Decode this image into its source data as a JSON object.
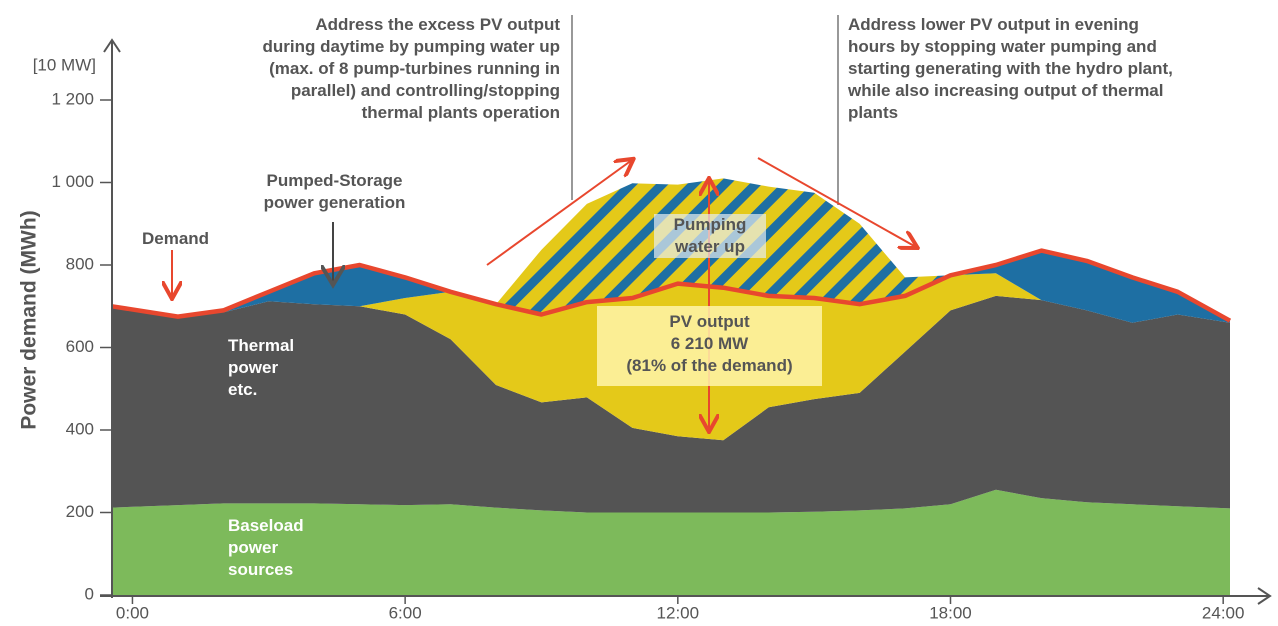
{
  "chart_data": {
    "type": "stacked_area",
    "ylabel": "Power demand (MWh)",
    "y_unit": "[10 MW]",
    "x": [
      -0.45,
      1,
      2,
      3,
      4,
      5,
      6,
      7,
      8,
      9,
      10,
      11,
      12,
      13,
      14,
      15,
      16,
      17,
      18,
      19,
      20,
      21,
      22,
      23,
      24.15
    ],
    "xlim": [
      -0.45,
      24.15
    ],
    "xticks": [
      {
        "value": 0,
        "label": "0:00"
      },
      {
        "value": 6,
        "label": "6:00"
      },
      {
        "value": 12,
        "label": "12:00"
      },
      {
        "value": 18,
        "label": "18:00"
      },
      {
        "value": 24,
        "label": "24:00"
      }
    ],
    "ylim": [
      0,
      1200
    ],
    "yticks": [
      0,
      200,
      400,
      600,
      800,
      {
        "value": 1000,
        "label": "1 000"
      },
      {
        "value": 1200,
        "label": "1 200"
      }
    ],
    "series": [
      {
        "name": "Baseload power sources",
        "color": "#7dba5b",
        "values": [
          212,
          218,
          222,
          222,
          222,
          220,
          218,
          220,
          212,
          205,
          200,
          200,
          200,
          200,
          200,
          202,
          205,
          210,
          220,
          255,
          235,
          225,
          220,
          215,
          210
        ]
      },
      {
        "name": "Thermal power etc.",
        "color": "#545454",
        "values": [
          483,
          460,
          463,
          490,
          483,
          480,
          462,
          400,
          297,
          262,
          279,
          205,
          185,
          175,
          255,
          273,
          285,
          380,
          470,
          470,
          480,
          465,
          440,
          465,
          450
        ]
      },
      {
        "name": "PV output",
        "color": "#e4c919",
        "values": [
          0,
          0,
          0,
          0,
          0,
          0,
          40,
          115,
          196,
          213,
          231,
          315,
          370,
          370,
          270,
          245,
          215,
          135,
          85,
          55,
          0,
          0,
          0,
          0,
          0
        ]
      },
      {
        "name": "Pumped-Storage power generation",
        "color": "#1e6fa3",
        "values": [
          5,
          0,
          5,
          23,
          75,
          100,
          50,
          0,
          0,
          0,
          0,
          0,
          0,
          0,
          0,
          0,
          0,
          0,
          0,
          20,
          120,
          120,
          110,
          55,
          5
        ]
      },
      {
        "name": "Pumping water up",
        "color": "#e4c919",
        "stripe_color": "#1e6fa3",
        "values": [
          0,
          0,
          0,
          0,
          0,
          0,
          0,
          0,
          0,
          157,
          238,
          278,
          240,
          265,
          265,
          255,
          195,
          45,
          0,
          0,
          0,
          0,
          0,
          0,
          0
        ]
      }
    ],
    "line": {
      "name": "Demand",
      "color": "#e8472e",
      "values": [
        700,
        675,
        690,
        735,
        780,
        800,
        770,
        735,
        705,
        680,
        710,
        720,
        755,
        745,
        725,
        720,
        705,
        725,
        775,
        800,
        835,
        810,
        770,
        735,
        665
      ]
    },
    "pv_total_label": "6 210 MW",
    "pv_share_label": "(81% of the demand)",
    "annotations": [
      "Address the excess PV output during daytime by pumping water up (max. of 8 pump-turbines running in parallel) and controlling/stopping thermal plants operation",
      "Address lower PV output in evening hours by stopping water pumping and starting generating with the hydro plant, while also increasing output of thermal plants"
    ]
  }
}
